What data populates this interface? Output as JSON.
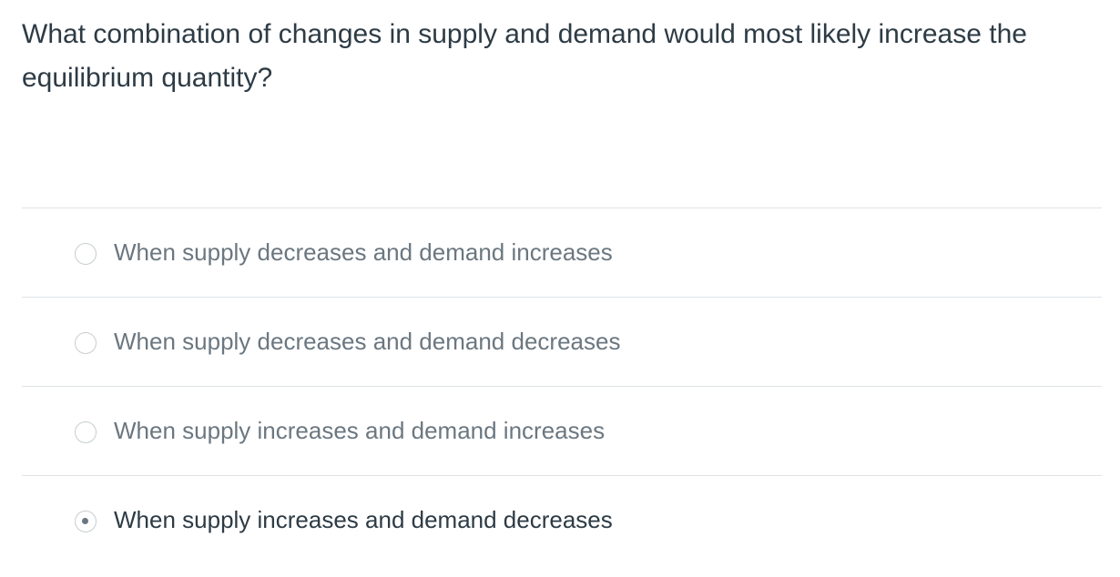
{
  "question": "What combination of changes in supply and demand would most likely increase the equilibrium quantity?",
  "options": [
    {
      "label": "When supply decreases and demand increases",
      "selected": false
    },
    {
      "label": "When supply decreases and demand decreases",
      "selected": false
    },
    {
      "label": "When supply increases and demand increases",
      "selected": false
    },
    {
      "label": "When supply increases and demand decreases",
      "selected": true
    }
  ]
}
